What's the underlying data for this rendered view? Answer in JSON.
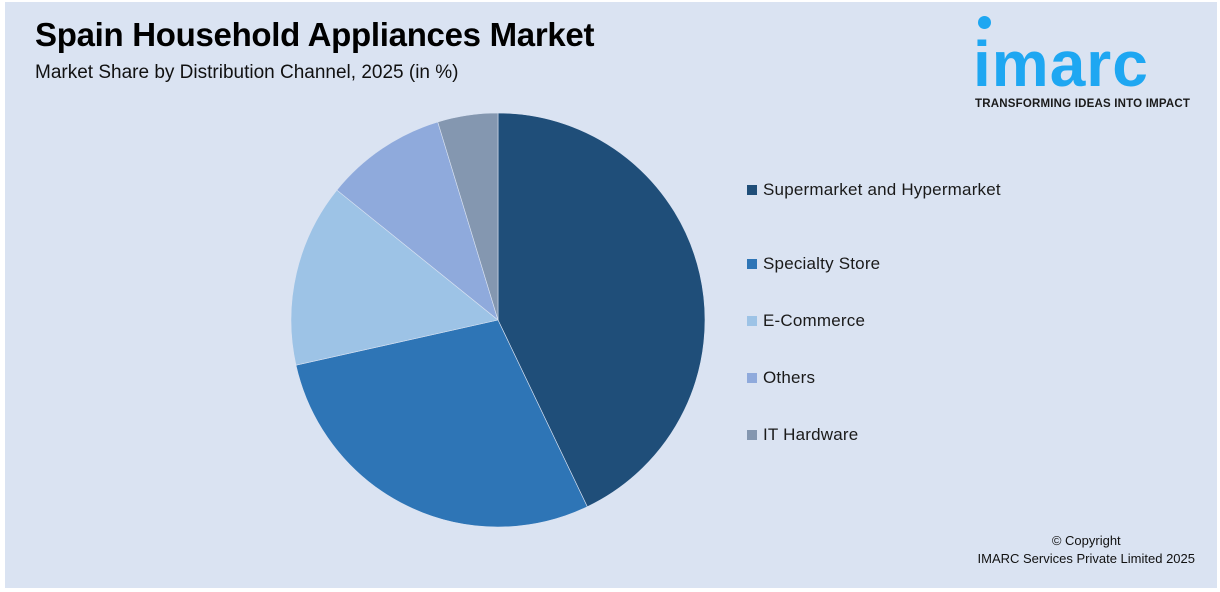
{
  "header": {
    "title": "Spain Household Appliances Market",
    "subtitle": "Market Share by Distribution Channel, 2025 (in %)"
  },
  "logo": {
    "word": "imarc",
    "tagline": "TRANSFORMING IDEAS INTO IMPACT",
    "color": "#1ea7f2"
  },
  "legend": {
    "items": [
      {
        "label": "Supermarket and Hypermarket",
        "color": "#1f4e79"
      },
      {
        "label": "Specialty Store",
        "color": "#2e75b6"
      },
      {
        "label": "E-Commerce",
        "color": "#9dc3e6"
      },
      {
        "label": "Others",
        "color": "#8faadc"
      },
      {
        "label": "IT Hardware",
        "color": "#8497b0"
      }
    ]
  },
  "footer": {
    "copyright_line1": "© Copyright",
    "copyright_line2": "IMARC Services Private Limited 2025"
  },
  "chart_data": {
    "type": "pie",
    "title": "Spain Household Appliances Market",
    "subtitle": "Market Share by Distribution Channel, 2025 (in %)",
    "categories": [
      "Supermarket and Hypermarket",
      "Specialty Store",
      "E-Commerce",
      "Others",
      "IT Hardware"
    ],
    "values": [
      42.9,
      28.6,
      14.3,
      9.5,
      4.7
    ],
    "colors": [
      "#1f4e79",
      "#2e75b6",
      "#9dc3e6",
      "#8faadc",
      "#8497b0"
    ],
    "start_angle": "12 o'clock, clockwise",
    "legend_position": "right",
    "data_labels": false
  }
}
